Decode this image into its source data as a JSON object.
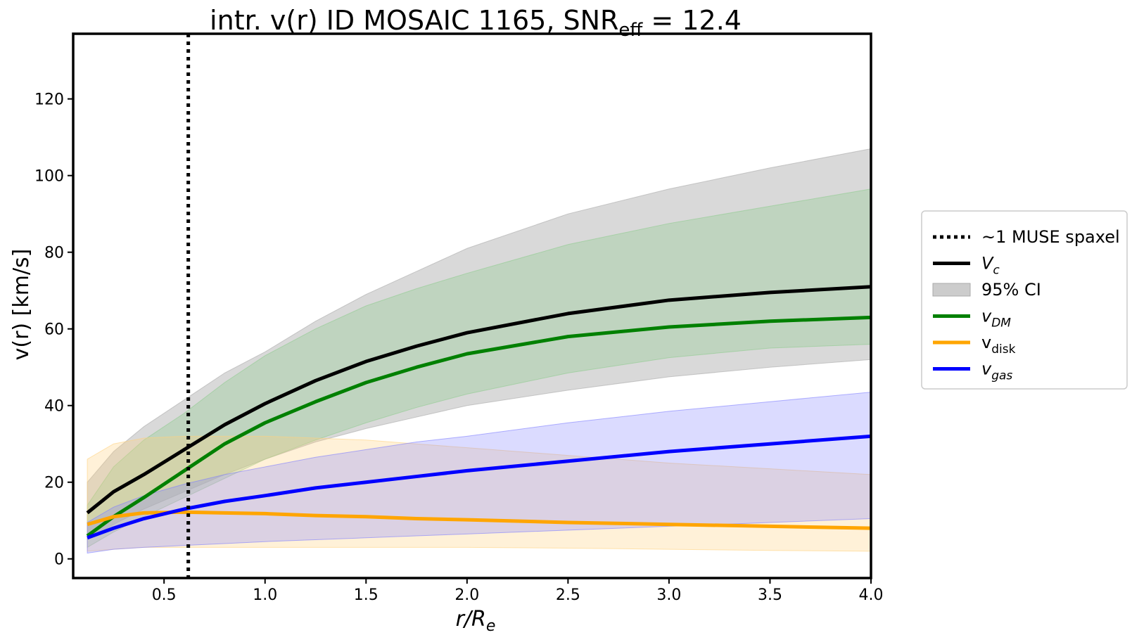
{
  "chart_data": {
    "type": "line",
    "title": "intr. v(r) ID MOSAIC 1165, SNR",
    "title_sub": "eff",
    "title_suffix": " = 12.4",
    "xlabel": "r/R",
    "xlabel_sub": "e",
    "ylabel": "v(r) [km/s]",
    "xlim": [
      0.05,
      4.0
    ],
    "ylim": [
      -5,
      137
    ],
    "xticks": [
      0.5,
      1.0,
      1.5,
      2.0,
      2.5,
      3.0,
      3.5,
      4.0
    ],
    "xtick_labels": [
      "0.5",
      "1.0",
      "1.5",
      "2.0",
      "2.5",
      "3.0",
      "3.5",
      "4.0"
    ],
    "yticks": [
      0,
      20,
      40,
      60,
      80,
      100,
      120
    ],
    "ytick_labels": [
      "0",
      "20",
      "40",
      "60",
      "80",
      "100",
      "120"
    ],
    "grid": false,
    "legend_position": "right",
    "vline": {
      "x": 0.62,
      "name": "~1 MUSE spaxel",
      "style": "dotted",
      "color": "#000000"
    },
    "x": [
      0.12,
      0.25,
      0.4,
      0.6,
      0.8,
      1.0,
      1.25,
      1.5,
      1.75,
      2.0,
      2.5,
      3.0,
      3.5,
      4.0
    ],
    "series": [
      {
        "name": "V",
        "sub": "c",
        "italic": true,
        "color": "#000000",
        "values": [
          12,
          17.5,
          22,
          28.5,
          35,
          40.5,
          46.5,
          51.5,
          55.5,
          59,
          64,
          67.5,
          69.5,
          71
        ],
        "band_low": [
          5,
          9,
          13,
          17.5,
          22,
          26,
          30.5,
          34,
          37,
          40,
          44,
          47.5,
          50,
          52
        ],
        "band_high": [
          20,
          28,
          34.5,
          41.5,
          48.5,
          54,
          62,
          69,
          75,
          81,
          90,
          96.5,
          102,
          107
        ],
        "band_color": "#aaaaaa",
        "band_opacity": 0.45
      },
      {
        "name": "v",
        "sub": "DM",
        "italic": true,
        "color": "#008000",
        "values": [
          6,
          11,
          16,
          23,
          30,
          35.5,
          41,
          46,
          50,
          53.5,
          58,
          60.5,
          62,
          63
        ],
        "band_low": [
          3,
          7,
          11,
          16,
          21,
          26,
          31,
          35.5,
          39.5,
          43,
          48.5,
          52.5,
          55,
          56
        ],
        "band_high": [
          14,
          24,
          31,
          38,
          46,
          53,
          60,
          66,
          70.5,
          74.5,
          82,
          87.5,
          92,
          96.5
        ],
        "band_color": "#8fcc8f",
        "band_opacity": 0.35
      },
      {
        "name": "v",
        "sub": "disk",
        "italic": false,
        "color": "#ffa500",
        "values": [
          9,
          11,
          12,
          12.2,
          12,
          11.8,
          11.3,
          11,
          10.5,
          10.2,
          9.5,
          9,
          8.5,
          8
        ],
        "band_low": [
          2,
          2.5,
          3,
          3,
          3,
          3,
          3,
          3,
          3,
          3,
          2.8,
          2.5,
          2.2,
          2
        ],
        "band_high": [
          26,
          30,
          31.5,
          32,
          32,
          32,
          31.5,
          31,
          30,
          29,
          27,
          25,
          23.5,
          22
        ],
        "band_color": "#ffd27f",
        "band_opacity": 0.3
      },
      {
        "name": "v",
        "sub": "gas",
        "italic": true,
        "color": "#0000ff",
        "values": [
          5.5,
          8,
          10.5,
          13,
          15,
          16.5,
          18.5,
          20,
          21.5,
          23,
          25.5,
          28,
          30,
          32
        ],
        "band_low": [
          1.5,
          2.5,
          3,
          3.5,
          4,
          4.5,
          5,
          5.5,
          6,
          6.5,
          7.5,
          8.5,
          9.5,
          10.5
        ],
        "band_high": [
          9.5,
          13.5,
          16.5,
          19.5,
          22,
          24,
          26.5,
          28.5,
          30.5,
          32,
          35.5,
          38.5,
          41,
          43.5
        ],
        "band_color": "#7f7fff",
        "band_opacity": 0.28
      }
    ],
    "legend": [
      {
        "kind": "dotted",
        "color": "#000000",
        "text": "~1 MUSE spaxel",
        "sub": "",
        "italic": false
      },
      {
        "kind": "line",
        "color": "#000000",
        "text": "V",
        "sub": "c",
        "italic": true
      },
      {
        "kind": "patch",
        "color": "#cccccc",
        "text": "95% CI",
        "sub": "",
        "italic": false
      },
      {
        "kind": "line",
        "color": "#008000",
        "text": "v",
        "sub": "DM",
        "italic": true
      },
      {
        "kind": "line",
        "color": "#ffa500",
        "text": "v",
        "sub": "disk",
        "italic": false
      },
      {
        "kind": "line",
        "color": "#0000ff",
        "text": "v",
        "sub": "gas",
        "italic": true
      }
    ]
  }
}
